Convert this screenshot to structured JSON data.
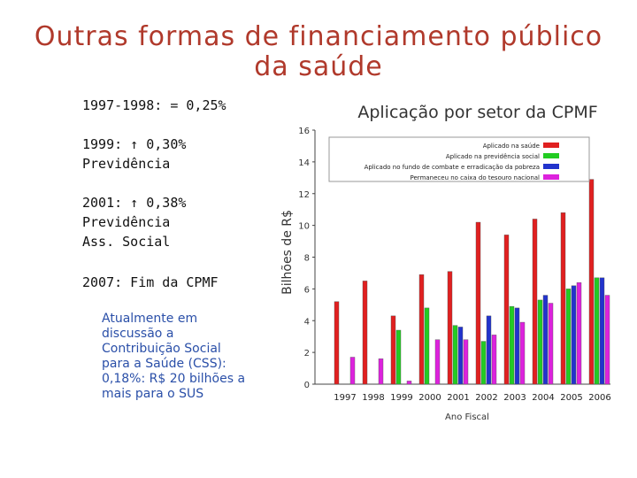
{
  "slide": {
    "title": [
      "Outras formas de financiamento público",
      "da saúde"
    ],
    "blocks": [
      [
        "1997-1998: = 0,25%"
      ],
      [
        "1999: ↑ 0,30%",
        "Previdência"
      ],
      [
        "2001: ↑ 0,38%",
        "Previdência",
        "Ass. Social"
      ],
      [
        "2007: Fim da CPMF"
      ]
    ],
    "note": [
      "Atualmente em",
      "discussão a",
      "Contribuição Social",
      "para a Saúde (CSS):",
      "0,18%: R$ 20 bilhões a",
      "mais para o SUS"
    ]
  },
  "chart_data": {
    "type": "bar",
    "title": "Aplicação por setor da CPMF",
    "x_label": "Ano Fiscal",
    "y_label": "Bilhões de R$",
    "categories": [
      "1997",
      "1998",
      "1999",
      "2000",
      "2001",
      "2002",
      "2003",
      "2004",
      "2005",
      "2006"
    ],
    "series": [
      {
        "name": "Aplicado na saúde",
        "color": "#e02020",
        "values": [
          5.2,
          6.5,
          4.3,
          6.9,
          7.1,
          10.2,
          9.4,
          10.4,
          10.8,
          12.9
        ]
      },
      {
        "name": "Aplicado na previdência social",
        "color": "#22cc22",
        "values": [
          0,
          0,
          3.4,
          4.8,
          3.7,
          2.7,
          4.9,
          5.3,
          6.0,
          6.7
        ]
      },
      {
        "name": "Aplicado no fundo de combate e erradicação da pobreza",
        "color": "#2233cc",
        "values": [
          0,
          0,
          0,
          0,
          3.6,
          4.3,
          4.8,
          5.6,
          6.2,
          6.7
        ]
      },
      {
        "name": "Permaneceu no caixa do tesouro nacional",
        "color": "#dd22dd",
        "values": [
          1.7,
          1.6,
          0.2,
          2.8,
          2.8,
          3.1,
          3.9,
          5.1,
          6.4,
          5.6
        ]
      }
    ],
    "ylim": [
      0,
      16
    ],
    "yticks": [
      0,
      2,
      4,
      6,
      8,
      10,
      12,
      14,
      16
    ]
  }
}
